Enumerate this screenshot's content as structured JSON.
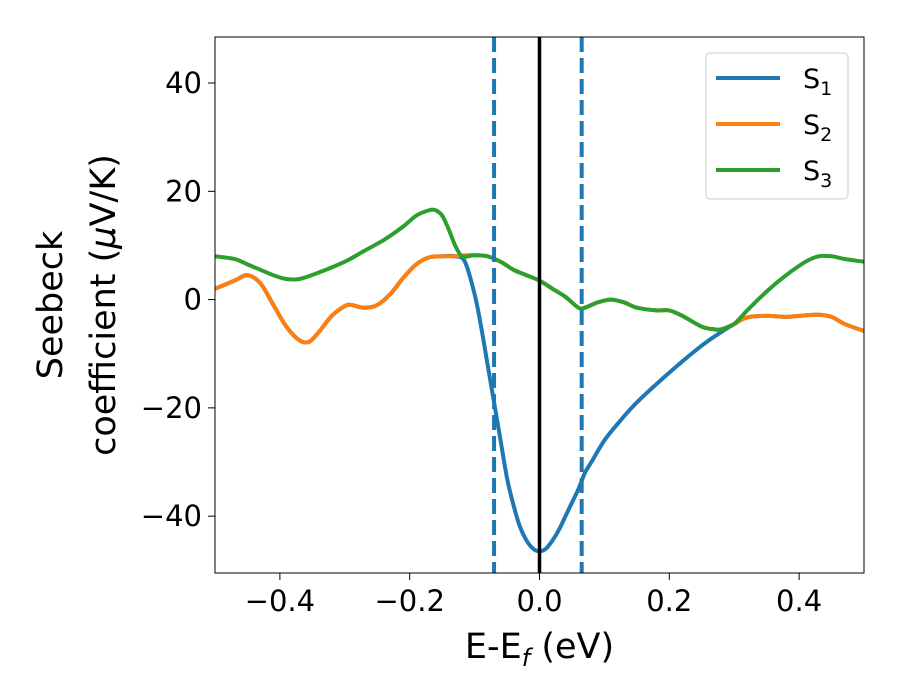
{
  "chart_data": {
    "type": "line",
    "xlabel": {
      "main": "E-E",
      "sub": "f",
      "unit": " (eV)"
    },
    "ylabel": {
      "line1": "Seebeck",
      "line2": "coefficient  (",
      "mu": "μ",
      "unit": "V/K)"
    },
    "xlim": [
      -0.5,
      0.5
    ],
    "ylim": [
      -50.5,
      48.5
    ],
    "x_ticks": [
      -0.4,
      -0.2,
      0.0,
      0.2,
      0.4
    ],
    "x_tick_labels": [
      "−0.4",
      "−0.2",
      "0.0",
      "0.2",
      "0.4"
    ],
    "y_ticks": [
      -40,
      -20,
      0,
      20,
      40
    ],
    "y_tick_labels": [
      "−40",
      "−20",
      "0",
      "20",
      "40"
    ],
    "grid": false,
    "legend_position": "top-right",
    "vlines": [
      {
        "x": -0.07,
        "style": "dashed",
        "color": "#1f77b4"
      },
      {
        "x": 0.065,
        "style": "dashed",
        "color": "#1f77b4"
      },
      {
        "x": 0.0,
        "style": "solid",
        "color": "#000000"
      }
    ],
    "series": [
      {
        "name": "S",
        "sub": "1",
        "color": "#1f77b4",
        "x": [
          -0.5,
          -0.47,
          -0.45,
          -0.43,
          -0.41,
          -0.39,
          -0.37,
          -0.355,
          -0.34,
          -0.32,
          -0.3,
          -0.29,
          -0.27,
          -0.25,
          -0.23,
          -0.21,
          -0.19,
          -0.17,
          -0.15,
          -0.13,
          -0.115,
          -0.1,
          -0.09,
          -0.08,
          -0.07,
          -0.06,
          -0.05,
          -0.04,
          -0.03,
          -0.02,
          -0.01,
          0.0,
          0.01,
          0.02,
          0.03,
          0.04,
          0.05,
          0.06,
          0.07,
          0.08,
          0.1,
          0.12,
          0.15,
          0.2,
          0.25,
          0.28,
          0.3,
          0.32,
          0.35,
          0.38,
          0.4,
          0.43,
          0.45,
          0.47,
          0.5
        ],
        "y": [
          2,
          3.5,
          4.5,
          3,
          -1,
          -5,
          -7.5,
          -7.8,
          -6,
          -3,
          -1.2,
          -1,
          -1.5,
          -1,
          1,
          4,
          6.5,
          7.8,
          8,
          8,
          7,
          1,
          -5,
          -12,
          -19,
          -26,
          -33,
          -38,
          -42,
          -44.5,
          -46,
          -46.5,
          -46,
          -44.5,
          -42.5,
          -40,
          -37.5,
          -35,
          -32,
          -30,
          -26,
          -23,
          -19,
          -13.5,
          -8.5,
          -6,
          -4.5,
          -3.3,
          -3,
          -3.2,
          -3,
          -2.8,
          -3.2,
          -4.5,
          -5.8
        ]
      },
      {
        "name": "S",
        "sub": "2",
        "color": "#ff7f0e",
        "x": [
          -0.5,
          -0.47,
          -0.45,
          -0.43,
          -0.41,
          -0.39,
          -0.37,
          -0.355,
          -0.34,
          -0.32,
          -0.3,
          -0.29,
          -0.27,
          -0.25,
          -0.23,
          -0.21,
          -0.19,
          -0.17,
          -0.15,
          -0.13,
          -0.115,
          -0.1,
          -0.08,
          -0.06,
          -0.04,
          -0.02,
          0.0,
          0.02,
          0.04,
          0.06,
          0.07,
          0.09,
          0.11,
          0.13,
          0.15,
          0.18,
          0.2,
          0.22,
          0.25,
          0.27,
          0.28,
          0.3,
          0.32,
          0.35,
          0.38,
          0.4,
          0.43,
          0.45,
          0.47,
          0.5
        ],
        "y": [
          2,
          3.5,
          4.5,
          3,
          -1,
          -5,
          -7.5,
          -7.8,
          -6,
          -3,
          -1.2,
          -1,
          -1.5,
          -1,
          1,
          4,
          6.5,
          7.8,
          8,
          8,
          8.2,
          8.2,
          8,
          7,
          5.5,
          4.5,
          3.5,
          2,
          0.5,
          -1.5,
          -1.5,
          -0.5,
          0,
          -0.5,
          -1.5,
          -2,
          -2,
          -3,
          -5,
          -5.5,
          -5.5,
          -4.5,
          -3.3,
          -3,
          -3.2,
          -3,
          -2.8,
          -3.2,
          -4.5,
          -5.8
        ]
      },
      {
        "name": "S",
        "sub": "3",
        "color": "#2ca02c",
        "x": [
          -0.5,
          -0.47,
          -0.45,
          -0.43,
          -0.41,
          -0.39,
          -0.37,
          -0.34,
          -0.3,
          -0.27,
          -0.24,
          -0.21,
          -0.19,
          -0.17,
          -0.16,
          -0.15,
          -0.14,
          -0.13,
          -0.12,
          -0.11,
          -0.1,
          -0.08,
          -0.06,
          -0.04,
          -0.02,
          0.0,
          0.02,
          0.04,
          0.06,
          0.07,
          0.09,
          0.11,
          0.13,
          0.15,
          0.18,
          0.2,
          0.22,
          0.25,
          0.27,
          0.28,
          0.3,
          0.32,
          0.35,
          0.38,
          0.41,
          0.43,
          0.45,
          0.47,
          0.5
        ],
        "y": [
          8,
          7.5,
          6.5,
          5.5,
          4.5,
          3.8,
          3.8,
          5,
          7,
          9,
          11,
          13.5,
          15.5,
          16.5,
          16.5,
          15.5,
          13,
          10,
          8,
          8,
          8.2,
          8,
          7,
          5.5,
          4.5,
          3.5,
          2,
          0.5,
          -1.5,
          -1.5,
          -0.5,
          0,
          -0.5,
          -1.5,
          -2,
          -2,
          -3,
          -5,
          -5.5,
          -5.5,
          -4.5,
          -2,
          1.5,
          4.5,
          7,
          8,
          8,
          7.5,
          7
        ]
      }
    ]
  }
}
